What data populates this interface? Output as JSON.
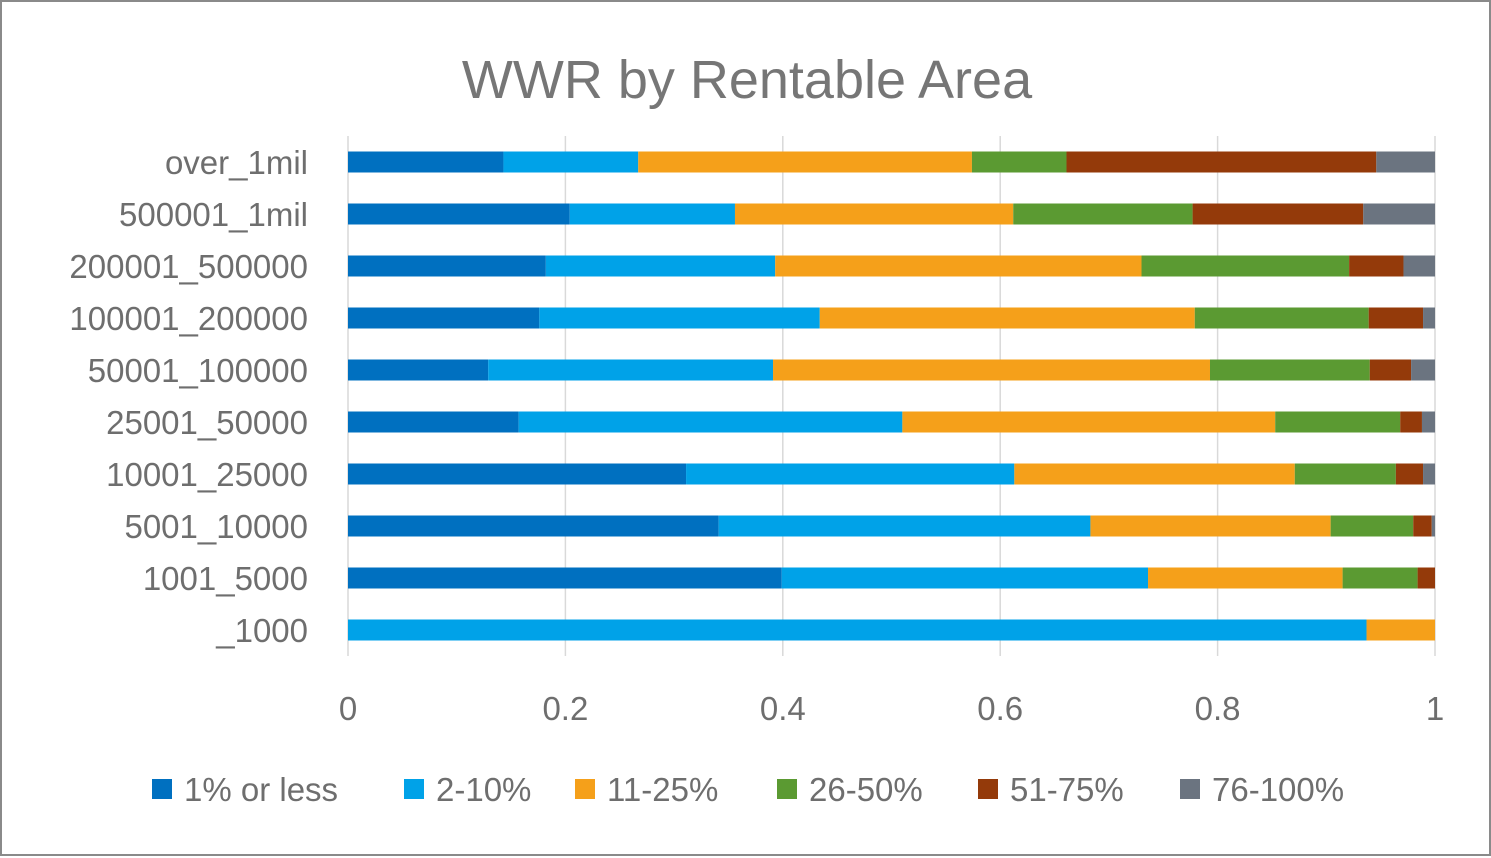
{
  "chart_data": {
    "type": "bar",
    "orientation": "horizontal",
    "stacked": true,
    "title": "WWR by Rentable Area",
    "xlabel": "",
    "ylabel": "",
    "xlim": [
      0,
      1
    ],
    "x_ticks": [
      "0",
      "0.2",
      "0.4",
      "0.6",
      "0.8",
      "1"
    ],
    "grid": true,
    "legend_position": "bottom",
    "categories": [
      "over_1mil",
      "500001_1mil",
      "200001_500000",
      "100001_200000",
      "50001_100000",
      "25001_50000",
      "10001_25000",
      "5001_10000",
      "1001_5000",
      "_1000"
    ],
    "series": [
      {
        "name": "1% or less",
        "color": "#0070C0",
        "values": [
          0.143,
          0.204,
          0.182,
          0.176,
          0.129,
          0.157,
          0.311,
          0.341,
          0.399,
          0.0
        ]
      },
      {
        "name": "2-10%",
        "color": "#00A2E8",
        "values": [
          0.124,
          0.152,
          0.211,
          0.258,
          0.262,
          0.353,
          0.302,
          0.342,
          0.337,
          0.937
        ]
      },
      {
        "name": "11-25%",
        "color": "#F5A01A",
        "values": [
          0.307,
          0.256,
          0.337,
          0.345,
          0.402,
          0.343,
          0.258,
          0.221,
          0.179,
          0.063
        ]
      },
      {
        "name": "26-50%",
        "color": "#5B9A32",
        "values": [
          0.087,
          0.165,
          0.191,
          0.16,
          0.147,
          0.115,
          0.093,
          0.076,
          0.069,
          0.0
        ]
      },
      {
        "name": "51-75%",
        "color": "#943A0A",
        "values": [
          0.285,
          0.157,
          0.05,
          0.05,
          0.038,
          0.02,
          0.025,
          0.017,
          0.016,
          0.0
        ]
      },
      {
        "name": "76-100%",
        "color": "#6B7480",
        "values": [
          0.054,
          0.066,
          0.029,
          0.011,
          0.022,
          0.012,
          0.011,
          0.003,
          0.0,
          0.0
        ]
      }
    ]
  }
}
